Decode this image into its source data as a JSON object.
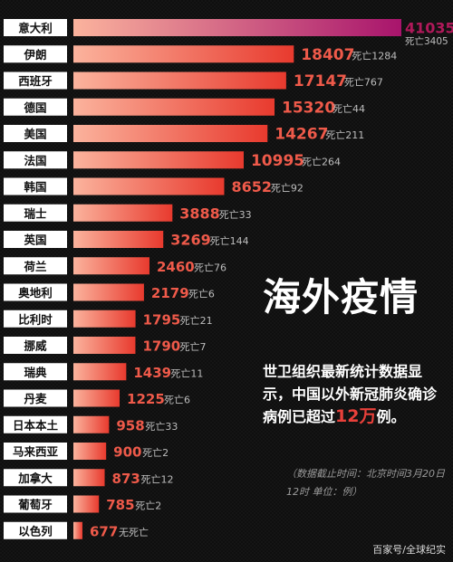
{
  "chart_data": {
    "type": "bar",
    "orientation": "horizontal",
    "categories": [
      "意大利",
      "伊朗",
      "西班牙",
      "德国",
      "美国",
      "法国",
      "韩国",
      "瑞士",
      "英国",
      "荷兰",
      "奥地利",
      "比利时",
      "挪威",
      "瑞典",
      "丹麦",
      "日本本土",
      "马来西亚",
      "加拿大",
      "葡萄牙",
      "以色列"
    ],
    "values": [
      41035,
      18407,
      17147,
      15320,
      14267,
      10995,
      8652,
      3888,
      3269,
      2460,
      2179,
      1795,
      1790,
      1439,
      1225,
      958,
      900,
      873,
      785,
      677
    ],
    "deaths_labels": [
      "死亡3405",
      "死亡1284",
      "死亡767",
      "死亡44",
      "死亡211",
      "死亡264",
      "死亡92",
      "死亡33",
      "死亡144",
      "死亡76",
      "死亡6",
      "死亡21",
      "死亡7",
      "死亡11",
      "死亡6",
      "死亡33",
      "死亡2",
      "死亡12",
      "死亡2",
      "无死亡"
    ],
    "colors": {
      "bar_start": "#fbb39d",
      "bar_end_regular": "#e83a2e",
      "bar_end_top": "#a8146c",
      "value_regular": "#ef5a4a",
      "value_top": "#b0195a",
      "label_box": "#ffffff",
      "label_text": "#111111",
      "deaths_text": "#bdbdbd"
    }
  },
  "headline": "海外疫情",
  "description": {
    "text": "世卫组织最新统计数据显示，中国以外新冠肺炎确诊病例已超过",
    "highlight": "12万",
    "end": "例。"
  },
  "note": "（数据截止时间：北京时间3月20日12时 单位：例）",
  "watermark": "百家号/全球纪实"
}
